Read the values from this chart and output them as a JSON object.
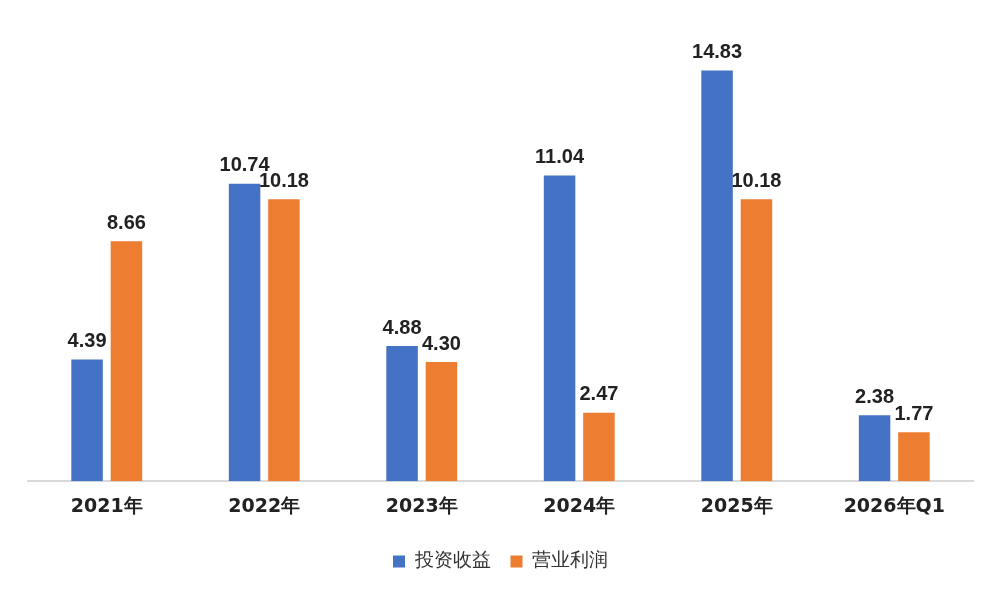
{
  "chart_data": {
    "type": "bar",
    "categories": [
      "2021年",
      "2022年",
      "2023年",
      "2024年",
      "2025年",
      "2026年Q1"
    ],
    "series": [
      {
        "name": "投资收益",
        "color": "#4472c4",
        "values": [
          4.39,
          10.74,
          4.88,
          11.04,
          14.83,
          2.38
        ],
        "value_labels": [
          "4.39",
          "10.74",
          "4.88",
          "11.04",
          "14.83",
          "2.38"
        ]
      },
      {
        "name": "营业利润",
        "color": "#ed7d31",
        "values": [
          8.66,
          10.18,
          4.3,
          2.47,
          10.18,
          1.77
        ],
        "value_labels": [
          "8.66",
          "10.18",
          "4.30",
          "2.47",
          "10.18",
          "1.77"
        ]
      }
    ],
    "tick_labels": "x",
    "grid": false,
    "legend": "bottom"
  }
}
